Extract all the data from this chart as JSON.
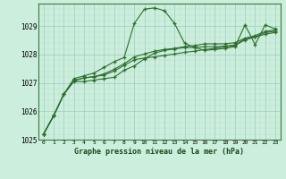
{
  "title": "Graphe pression niveau de la mer (hPa)",
  "bg_color": "#cceedd",
  "grid_major_color": "#99ccbb",
  "grid_minor_color": "#bbddcc",
  "line_color": "#2d6e2d",
  "marker_color": "#2d6e2d",
  "xlim": [
    -0.5,
    23.5
  ],
  "ylim": [
    1025.0,
    1029.8
  ],
  "yticks": [
    1025,
    1026,
    1027,
    1028,
    1029
  ],
  "xticks": [
    0,
    1,
    2,
    3,
    4,
    5,
    6,
    7,
    8,
    9,
    10,
    11,
    12,
    13,
    14,
    15,
    16,
    17,
    18,
    19,
    20,
    21,
    22,
    23
  ],
  "series": [
    [
      1025.2,
      1025.85,
      1026.6,
      1027.15,
      1027.25,
      1027.35,
      1027.55,
      1027.75,
      1027.9,
      1029.1,
      1029.6,
      1029.65,
      1029.55,
      1029.1,
      1028.4,
      1028.25,
      1028.15,
      1028.18,
      1028.22,
      1028.28,
      1029.05,
      1028.35,
      1029.05,
      1028.9
    ],
    [
      1025.2,
      1025.85,
      1026.6,
      1027.05,
      1027.05,
      1027.1,
      1027.15,
      1027.2,
      1027.45,
      1027.6,
      1027.85,
      1028.05,
      1028.15,
      1028.2,
      1028.25,
      1028.25,
      1028.28,
      1028.28,
      1028.3,
      1028.34,
      1028.55,
      1028.62,
      1028.72,
      1028.78
    ],
    [
      1025.2,
      1025.85,
      1026.6,
      1027.08,
      1027.18,
      1027.22,
      1027.28,
      1027.42,
      1027.62,
      1027.82,
      1027.88,
      1027.92,
      1027.97,
      1028.02,
      1028.08,
      1028.12,
      1028.18,
      1028.22,
      1028.27,
      1028.32,
      1028.52,
      1028.62,
      1028.78,
      1028.82
    ],
    [
      1025.2,
      1025.85,
      1026.6,
      1027.08,
      1027.18,
      1027.22,
      1027.32,
      1027.48,
      1027.68,
      1027.92,
      1028.02,
      1028.12,
      1028.18,
      1028.22,
      1028.28,
      1028.32,
      1028.38,
      1028.38,
      1028.38,
      1028.42,
      1028.58,
      1028.67,
      1028.82,
      1028.87
    ]
  ]
}
